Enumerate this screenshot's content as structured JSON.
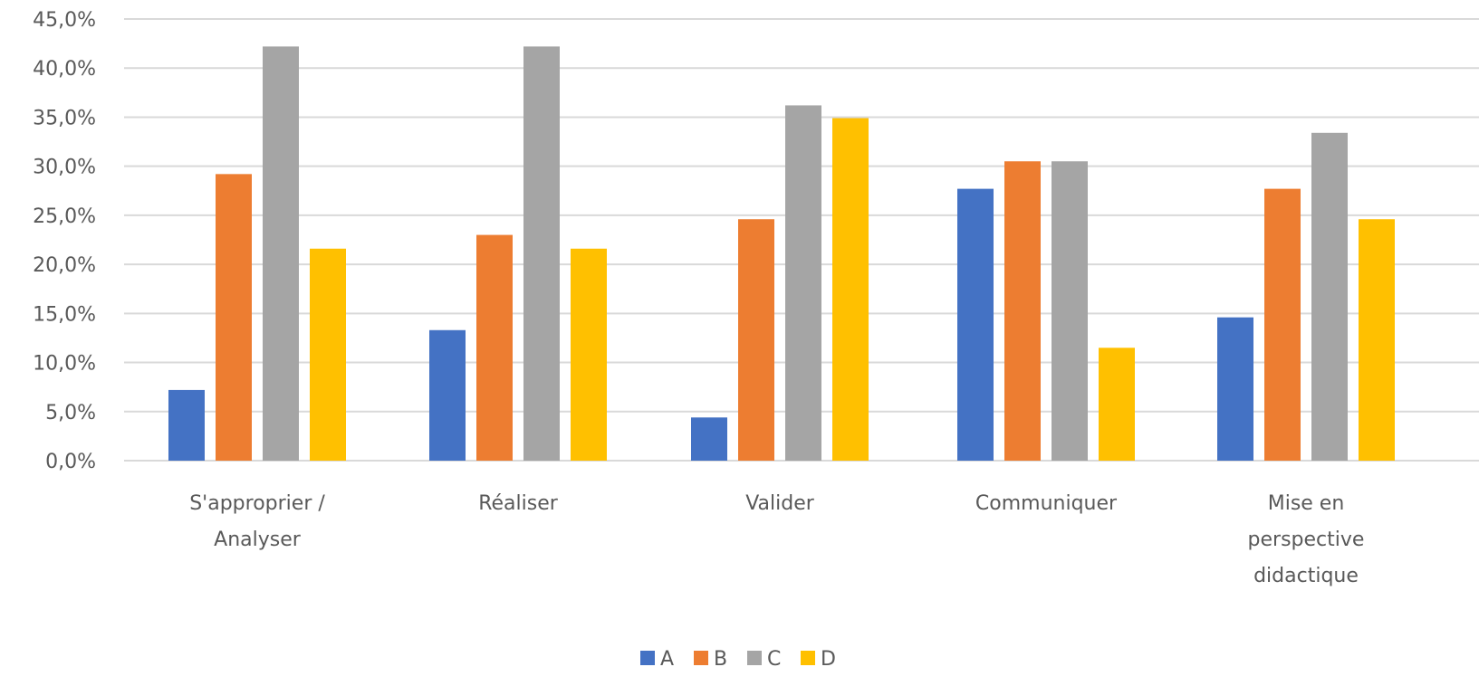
{
  "chart_data": {
    "type": "bar",
    "title": "",
    "xlabel": "",
    "ylabel": "",
    "ylim": [
      0,
      45
    ],
    "yticks": [
      "0,0%",
      "5,0%",
      "10,0%",
      "15,0%",
      "20,0%",
      "25,0%",
      "30,0%",
      "35,0%",
      "40,0%",
      "45,0%"
    ],
    "grid": true,
    "legend_position": "bottom",
    "categories": [
      [
        "S'approprier /",
        "Analyser"
      ],
      [
        "Réaliser"
      ],
      [
        "Valider"
      ],
      [
        "Communiquer"
      ],
      [
        "Mise en",
        "perspective",
        "didactique"
      ]
    ],
    "series": [
      {
        "name": "A",
        "color": "#4472C4",
        "values": [
          7.2,
          13.3,
          4.4,
          27.7,
          14.6
        ]
      },
      {
        "name": "B",
        "color": "#ED7D31",
        "values": [
          29.2,
          23.0,
          24.6,
          30.5,
          27.7
        ]
      },
      {
        "name": "C",
        "color": "#A5A5A5",
        "values": [
          42.2,
          42.2,
          36.2,
          30.5,
          33.4
        ]
      },
      {
        "name": "D",
        "color": "#FFC000",
        "values": [
          21.6,
          21.6,
          34.9,
          11.5,
          24.6
        ]
      }
    ]
  }
}
